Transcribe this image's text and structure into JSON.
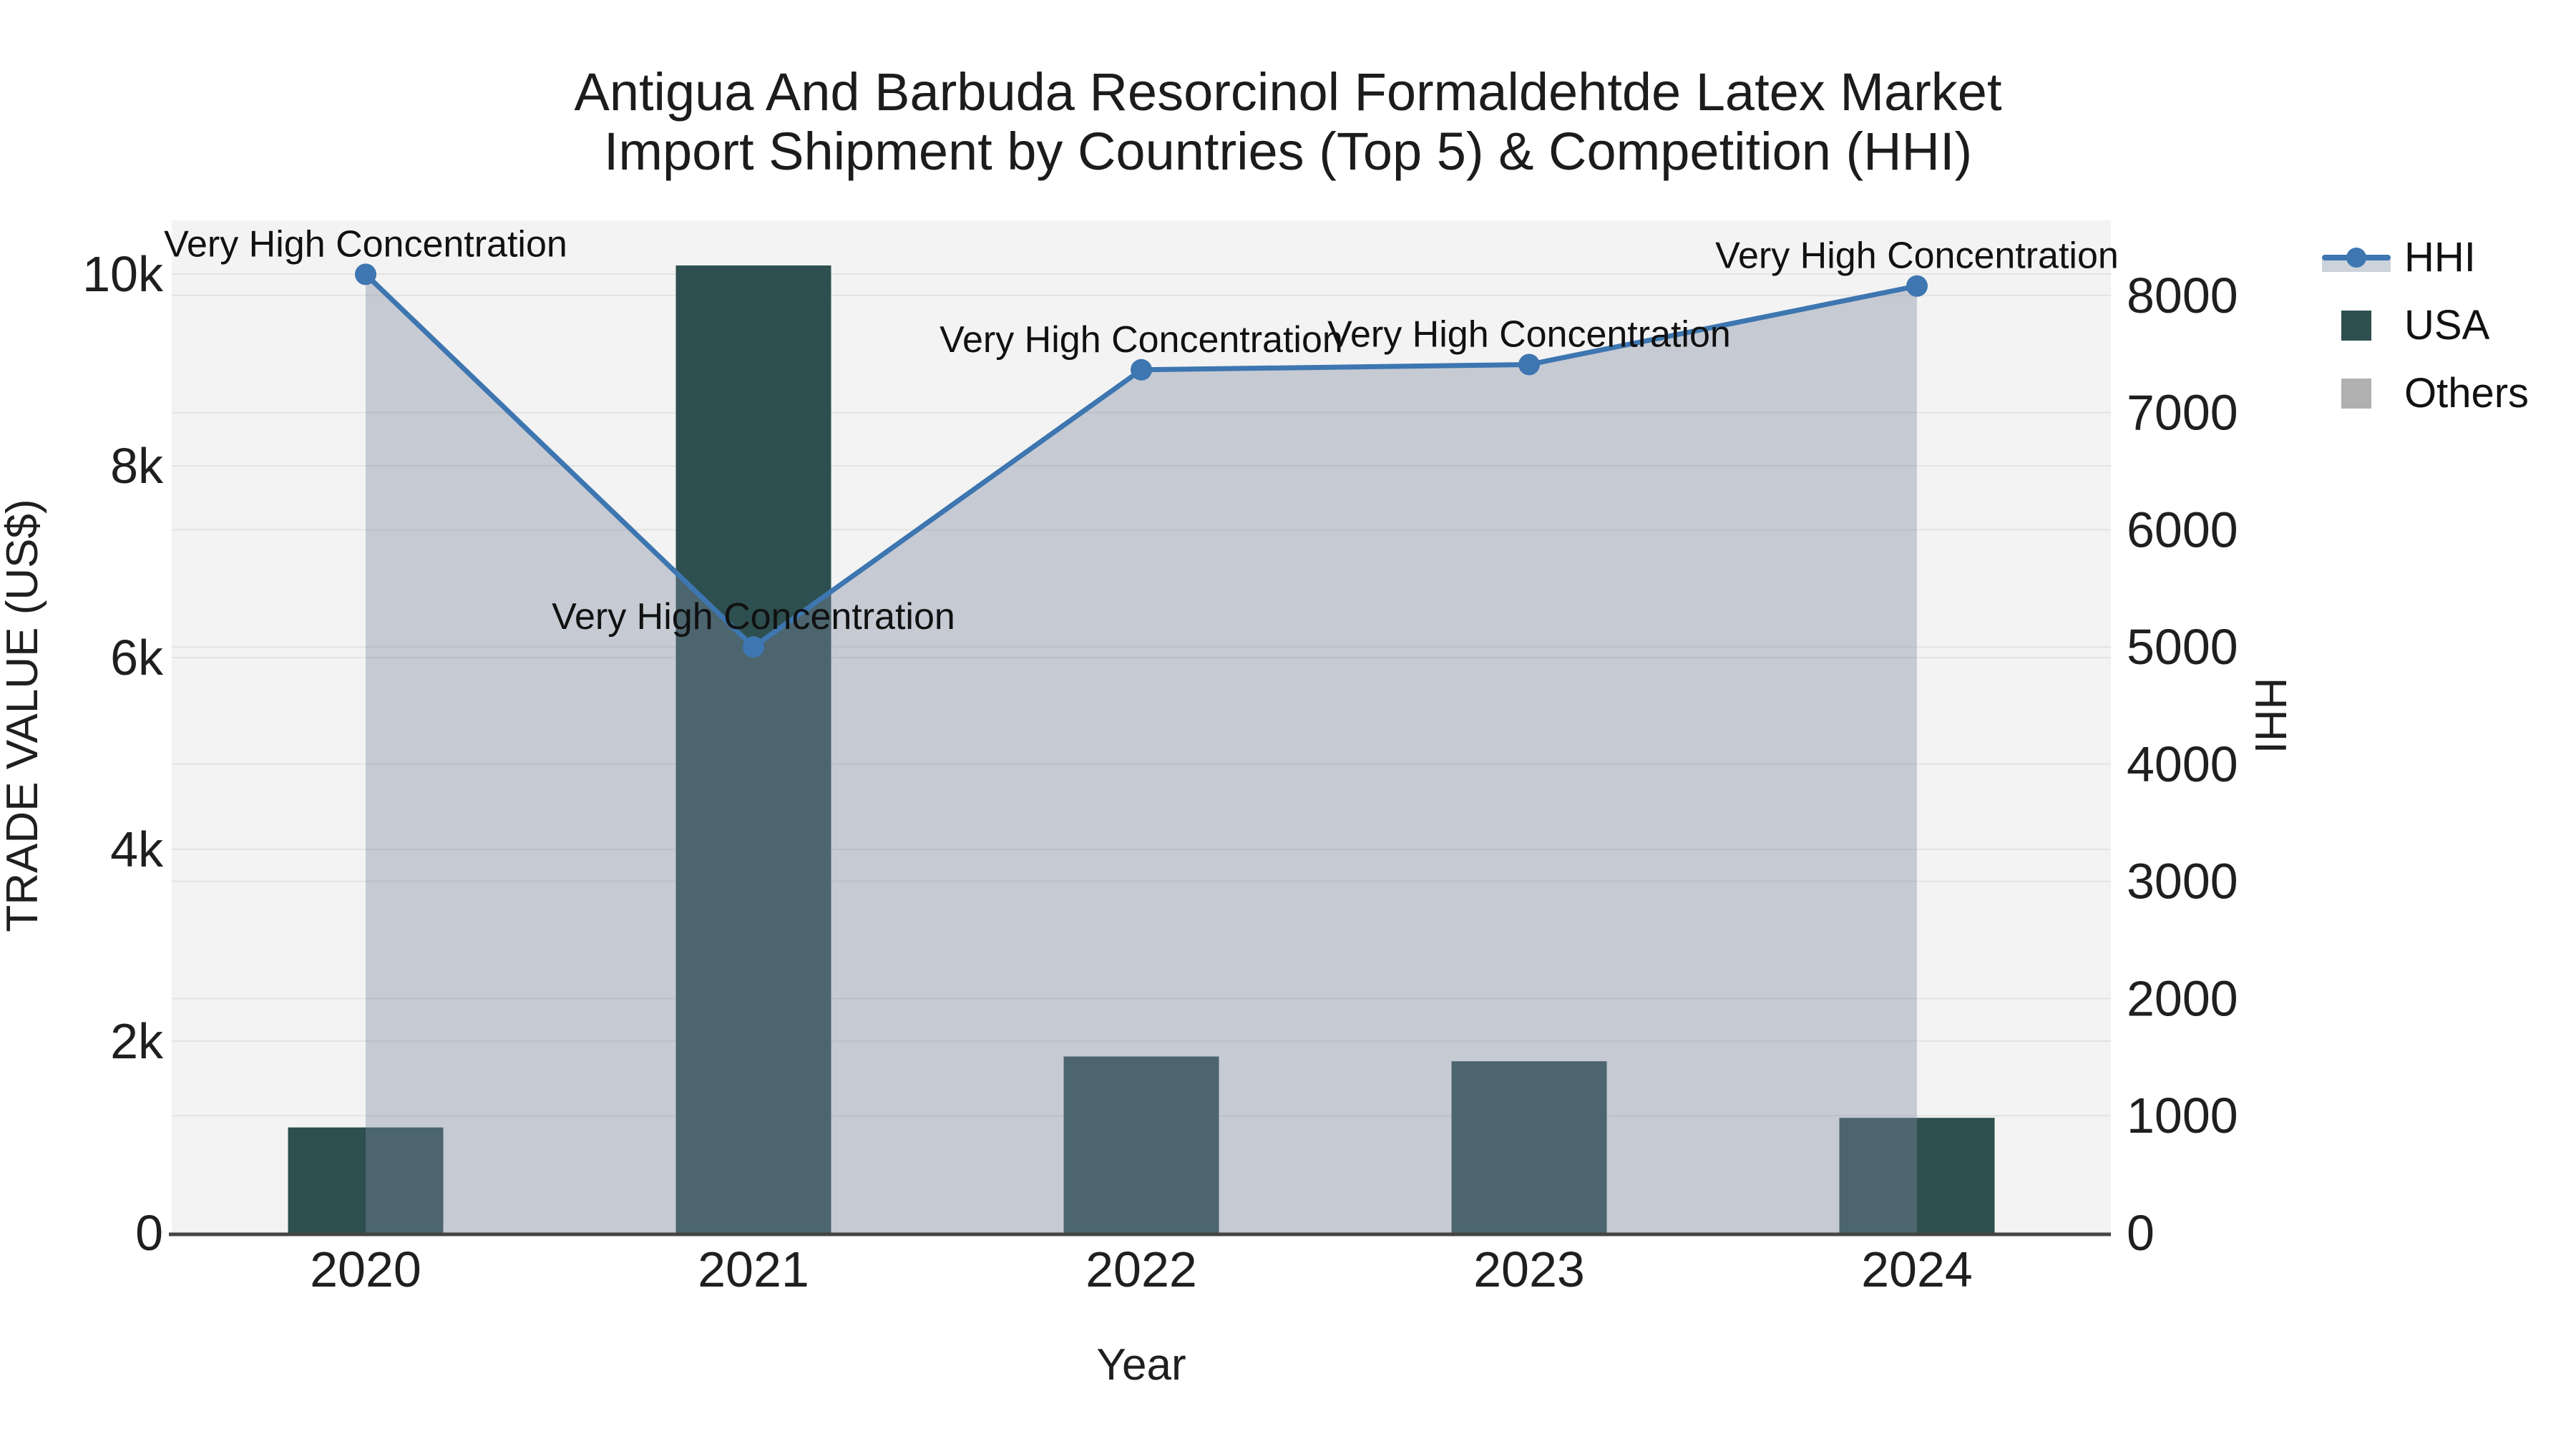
{
  "title": {
    "line1": "Antigua And Barbuda Resorcinol Formaldehtde Latex Market",
    "line2": "Import Shipment by Countries (Top 5) & Competition (HHI)"
  },
  "axes": {
    "x": {
      "title": "Year",
      "categories": [
        "2020",
        "2021",
        "2022",
        "2023",
        "2024"
      ]
    },
    "left": {
      "title": "TRADE VALUE (US$)",
      "tick_labels": [
        "0",
        "2k",
        "4k",
        "6k",
        "8k",
        "10k"
      ],
      "tick_values": [
        0,
        2000,
        4000,
        6000,
        8000,
        10000
      ],
      "range": [
        0,
        10560
      ],
      "grid": true
    },
    "right": {
      "title": "HHI",
      "tick_labels": [
        "0",
        "1000",
        "2000",
        "3000",
        "4000",
        "5000",
        "6000",
        "7000",
        "8000"
      ],
      "tick_values": [
        0,
        1000,
        2000,
        3000,
        4000,
        5000,
        6000,
        7000,
        8000
      ],
      "range": [
        0,
        8640
      ],
      "grid": true
    }
  },
  "chart_data": {
    "type": "combo-bar-line-area",
    "categories": [
      "2020",
      "2021",
      "2022",
      "2023",
      "2024"
    ],
    "series": [
      {
        "name": "HHI",
        "type": "line+area",
        "axis": "right",
        "values": [
          8180,
          5000,
          7365,
          7410,
          8080
        ],
        "color": "#3d76b0",
        "fill_color": "rgba(125,138,160,0.38)"
      },
      {
        "name": "USA",
        "type": "bar",
        "axis": "left",
        "values": [
          1100,
          10090,
          1840,
          1790,
          1200
        ],
        "color": "#2e4f4f"
      },
      {
        "name": "Others",
        "type": "bar",
        "axis": "left",
        "color": "#b0b0b0"
      }
    ],
    "annotations": [
      {
        "x": "2020",
        "text": "Very High Concentration"
      },
      {
        "x": "2021",
        "text": "Very High Concentration"
      },
      {
        "x": "2022",
        "text": "Very High Concentration"
      },
      {
        "x": "2023",
        "text": "Very High Concentration"
      },
      {
        "x": "2024",
        "text": "Very High Concentration"
      }
    ],
    "legend_position": "top-right",
    "plot_background": "#f3f3f3"
  },
  "legend": {
    "items": [
      {
        "label": "HHI",
        "symbol": "line-marker-fill",
        "color": "#3d76b0"
      },
      {
        "label": "USA",
        "symbol": "swatch",
        "color": "#2e4f4f"
      },
      {
        "label": "Others",
        "symbol": "swatch",
        "color": "#b0b0b0"
      }
    ]
  },
  "colors": {
    "page_bg": "#ffffff",
    "plot_bg": "#f3f3f3",
    "gridline": "#e3e3e3",
    "axis_line": "#444444",
    "text": "#1f1f1f",
    "bar": "#2e4f4f",
    "line": "#3d76b0",
    "area_fill": "rgba(125,138,160,0.38)",
    "legend_fill_swatch": "#cdd3db"
  }
}
